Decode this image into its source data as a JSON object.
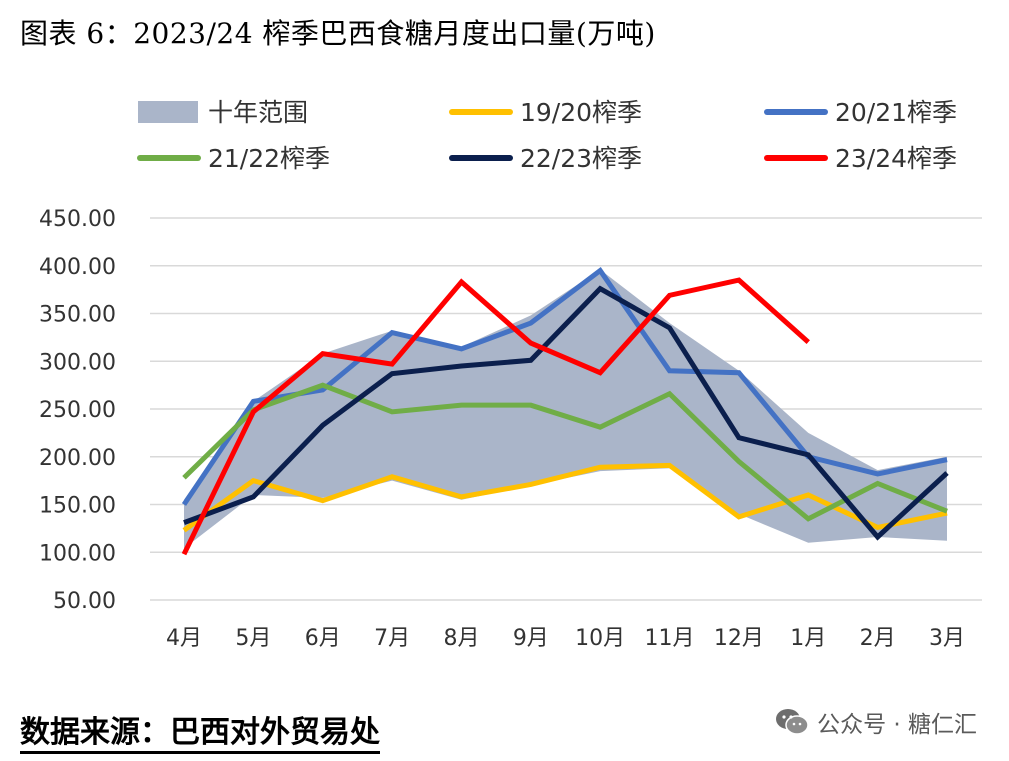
{
  "page": {
    "title": "图表 6：2023/24 榨季巴西食糖月度出口量(万吨)",
    "source": "数据来源：巴西对外贸易处",
    "watermark": "公众号 · 糖仁汇"
  },
  "colors": {
    "range": "#aab5c9",
    "s1920": "#ffc000",
    "s2021": "#4472c4",
    "s2122": "#70ad47",
    "s2223": "#0b1f4d",
    "s2324": "#ff0000",
    "grid": "#d9d9d9"
  },
  "chart_data": {
    "type": "line",
    "title": "2023/24 榨季巴西食糖月度出口量(万吨)",
    "categories": [
      "4月",
      "5月",
      "6月",
      "7月",
      "8月",
      "9月",
      "10月",
      "11月",
      "12月",
      "1月",
      "2月",
      "3月"
    ],
    "ylim": [
      50,
      450
    ],
    "yticks": [
      50,
      100,
      150,
      200,
      250,
      300,
      350,
      400,
      450
    ],
    "ytick_labels": [
      "50.00",
      "100.00",
      "150.00",
      "200.00",
      "250.00",
      "300.00",
      "350.00",
      "400.00",
      "450.00"
    ],
    "legend_position": "top",
    "range_band": {
      "name": "十年范围",
      "low": [
        104,
        160,
        157,
        175,
        155,
        170,
        185,
        188,
        140,
        110,
        116,
        112
      ],
      "high": [
        155,
        258,
        308,
        332,
        315,
        348,
        396,
        340,
        290,
        225,
        186,
        200
      ]
    },
    "series": [
      {
        "name": "19/20榨季",
        "color_key": "s1920",
        "values": [
          123,
          175,
          154,
          179,
          158,
          171,
          189,
          191,
          137,
          160,
          126,
          141
        ]
      },
      {
        "name": "20/21榨季",
        "color_key": "s2021",
        "values": [
          150,
          258,
          270,
          330,
          313,
          340,
          395,
          290,
          288,
          200,
          182,
          197
        ]
      },
      {
        "name": "21/22榨季",
        "color_key": "s2122",
        "values": [
          178,
          249,
          275,
          247,
          254,
          254,
          231,
          266,
          195,
          135,
          172,
          143
        ]
      },
      {
        "name": "22/23榨季",
        "color_key": "s2223",
        "values": [
          131,
          158,
          233,
          287,
          295,
          301,
          376,
          335,
          220,
          202,
          116,
          183
        ]
      },
      {
        "name": "23/24榨季",
        "color_key": "s2324",
        "values": [
          98,
          247,
          308,
          297,
          383,
          319,
          288,
          369,
          385,
          320,
          null,
          null
        ]
      }
    ]
  }
}
